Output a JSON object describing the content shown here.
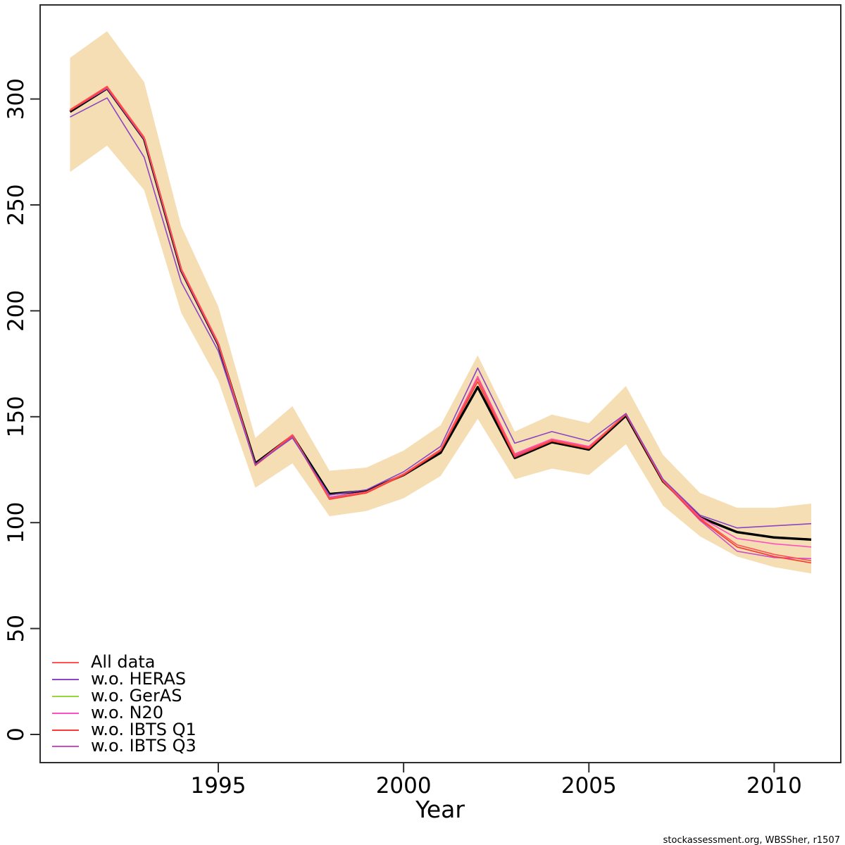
{
  "meta": {
    "attribution": "stockassessment.org, WBSSher, r1507"
  },
  "chart_data": {
    "type": "line",
    "title": "",
    "xlabel": "Year",
    "ylabel": "",
    "x": [
      1991,
      1992,
      1993,
      1994,
      1995,
      1996,
      1997,
      1998,
      1999,
      2000,
      2001,
      2002,
      2003,
      2004,
      2005,
      2006,
      2007,
      2008,
      2009,
      2010,
      2011
    ],
    "x_ticks": [
      {
        "value": 1995,
        "label": "1995"
      },
      {
        "value": 2000,
        "label": "2000"
      },
      {
        "value": 2005,
        "label": "2005"
      },
      {
        "value": 2010,
        "label": "2010"
      }
    ],
    "y_ticks": [
      {
        "value": 0,
        "label": "0"
      },
      {
        "value": 50,
        "label": "50"
      },
      {
        "value": 100,
        "label": "100"
      },
      {
        "value": 150,
        "label": "150"
      },
      {
        "value": 200,
        "label": "200"
      },
      {
        "value": 250,
        "label": "250"
      },
      {
        "value": 300,
        "label": "300"
      }
    ],
    "xlim": [
      1990.2,
      2011.8
    ],
    "ylim": [
      -13,
      344
    ],
    "grid": false,
    "band": {
      "name": "confidence-band",
      "color": "#F5DEB3",
      "upper": [
        319.5,
        332,
        308,
        240,
        202,
        140,
        155,
        124.5,
        126,
        134,
        146,
        179,
        143,
        151,
        147,
        164.5,
        132,
        114,
        107,
        107,
        109
      ],
      "lower": [
        265.5,
        278,
        257,
        199,
        167,
        116.5,
        128,
        103,
        105.5,
        111.5,
        122,
        149,
        120.5,
        125.5,
        122.5,
        137,
        108,
        93.5,
        84,
        79,
        76
      ]
    },
    "series": [
      {
        "name": "Base",
        "color": "#000000",
        "width": 3.4,
        "in_legend": false,
        "values": [
          294,
          305,
          281,
          219,
          184,
          128,
          141,
          113.5,
          115,
          122.5,
          133,
          164,
          130.5,
          138,
          134.5,
          150.5,
          119.5,
          102.5,
          95.5,
          93,
          92
        ]
      },
      {
        "name": "w.o. GerAS",
        "color": "#97D541",
        "width": 1.6,
        "in_legend": true,
        "values": [
          294.5,
          305.5,
          281.5,
          219.5,
          184.5,
          127,
          141,
          111,
          114,
          122.5,
          134,
          166.5,
          131,
          138.5,
          135,
          151,
          119.5,
          101.5,
          88.5,
          84,
          81
        ]
      },
      {
        "name": "w.o. N20",
        "color": "#FF4FC3",
        "width": 1.6,
        "in_legend": true,
        "values": [
          295,
          305.5,
          281.5,
          219.5,
          184.5,
          127.5,
          141,
          112,
          114.5,
          123,
          134.5,
          169,
          132.5,
          139.5,
          136,
          151,
          120,
          102.5,
          92.5,
          90,
          88.5
        ]
      },
      {
        "name": "w.o. IBTS Q3",
        "color": "#C84FC8",
        "width": 1.6,
        "in_legend": true,
        "values": [
          294.5,
          305,
          281,
          219,
          184,
          127,
          140.5,
          112,
          114.5,
          122.5,
          134,
          168,
          131.5,
          139,
          135.5,
          151,
          119.5,
          101,
          86.5,
          83.5,
          83
        ]
      },
      {
        "name": "w.o. IBTS Q1",
        "color": "#FF3838",
        "width": 1.6,
        "in_legend": true,
        "values": [
          294.5,
          305.5,
          281.5,
          219.5,
          184.5,
          127,
          141,
          111,
          114,
          122.5,
          134,
          166.5,
          131,
          138.5,
          135,
          151,
          119.5,
          101.5,
          88.5,
          84,
          81
        ]
      },
      {
        "name": "All data",
        "color": "#FF5252",
        "width": 1.6,
        "in_legend": true,
        "values": [
          295,
          306,
          282,
          220,
          185,
          127.5,
          141.5,
          111.5,
          114.5,
          123,
          134.5,
          168,
          132,
          139,
          135.5,
          151.5,
          120,
          102,
          89.5,
          85,
          82
        ]
      },
      {
        "name": "w.o. HERAS",
        "color": "#8B46C3",
        "width": 1.6,
        "in_legend": true,
        "values": [
          291.5,
          300.5,
          272.5,
          213.5,
          181,
          127.5,
          140,
          113,
          115.5,
          124,
          136,
          173,
          137.5,
          143,
          138.5,
          151.5,
          120.5,
          103.5,
          97.5,
          98.5,
          99.5
        ]
      }
    ],
    "legend_entries": [
      {
        "label": "All data",
        "color": "#FF5252"
      },
      {
        "label": "w.o. HERAS",
        "color": "#8B46C3"
      },
      {
        "label": "w.o. GerAS",
        "color": "#97D541"
      },
      {
        "label": "w.o. N20",
        "color": "#FF4FC3"
      },
      {
        "label": "w.o. IBTS Q1",
        "color": "#FF3838"
      },
      {
        "label": "w.o. IBTS Q3",
        "color": "#C84FC8"
      }
    ],
    "legend_position": "bottom-left"
  }
}
